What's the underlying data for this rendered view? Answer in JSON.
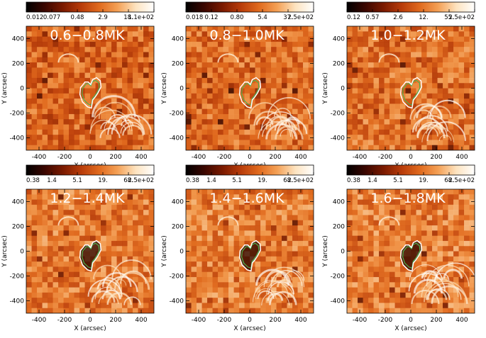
{
  "chart_data": {
    "type": "heatmap",
    "colormap": "sdoaia171",
    "colormap_stops": [
      "#000000",
      "#3a0600",
      "#7a1a00",
      "#b83c0a",
      "#e06a1e",
      "#f4a055",
      "#fde3bf",
      "#ffffff"
    ],
    "contour_colors": {
      "outer": "#ffffff",
      "inner": "#4caf50"
    },
    "xlabel": "X (arcsec)",
    "ylabel": "Y (arcsec)",
    "xlim": [
      -500,
      500
    ],
    "ylim": [
      -500,
      500
    ],
    "xticks": [
      "-400",
      "-200",
      "0",
      "200",
      "400"
    ],
    "yticks": [
      "-400",
      "-200",
      "0",
      "200",
      "400"
    ],
    "panels": [
      {
        "title": "0.6−0.8MK",
        "colorbar_ticks": [
          "0.012",
          "0.077",
          "0.48",
          "2.9",
          "18.",
          "1.1e+02"
        ],
        "brightness": 0.45,
        "darkness": 0.55
      },
      {
        "title": "0.8−1.0MK",
        "colorbar_ticks": [
          "0.018",
          "0.12",
          "0.80",
          "5.4",
          "37.",
          "2.5e+02"
        ],
        "brightness": 0.5,
        "darkness": 0.4
      },
      {
        "title": "1.0−1.2MK",
        "colorbar_ticks": [
          "0.12",
          "0.57",
          "2.6",
          "12.",
          "55.",
          "2.5e+02"
        ],
        "brightness": 0.55,
        "darkness": 0.3
      },
      {
        "title": "1.2−1.4MK",
        "colorbar_ticks": [
          "0.38",
          "1.4",
          "5.1",
          "19.",
          "68.",
          "2.5e+02"
        ],
        "brightness": 0.65,
        "darkness": 0.2
      },
      {
        "title": "1.4−1.6MK",
        "colorbar_ticks": [
          "0.38",
          "1.4",
          "5.1",
          "19.",
          "68.",
          "2.5e+02"
        ],
        "brightness": 0.68,
        "darkness": 0.25
      },
      {
        "title": "1.6−1.8MK",
        "colorbar_ticks": [
          "0.38",
          "1.4",
          "5.1",
          "19.",
          "68.",
          "2.5e+02"
        ],
        "brightness": 0.7,
        "darkness": 0.3
      }
    ]
  }
}
